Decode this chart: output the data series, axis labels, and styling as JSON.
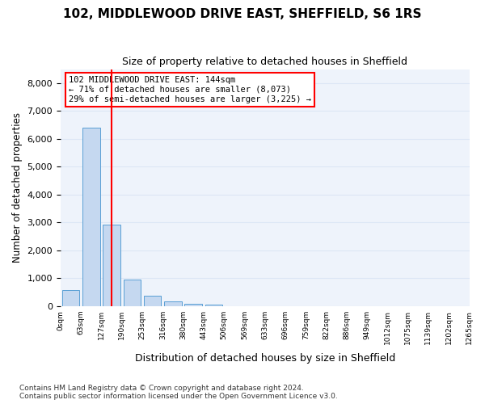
{
  "title": "102, MIDDLEWOOD DRIVE EAST, SHEFFIELD, S6 1RS",
  "subtitle": "Size of property relative to detached houses in Sheffield",
  "xlabel": "Distribution of detached houses by size in Sheffield",
  "ylabel": "Number of detached properties",
  "bar_values": [
    580,
    6400,
    2920,
    960,
    360,
    160,
    90,
    50,
    0,
    0,
    0,
    0,
    0,
    0,
    0,
    0,
    0,
    0,
    0,
    0
  ],
  "bar_color": "#c5d8f0",
  "bar_edge_color": "#5a9fd4",
  "tick_labels": [
    "0sqm",
    "63sqm",
    "127sqm",
    "190sqm",
    "253sqm",
    "316sqm",
    "380sqm",
    "443sqm",
    "506sqm",
    "569sqm",
    "633sqm",
    "696sqm",
    "759sqm",
    "822sqm",
    "886sqm",
    "949sqm",
    "1012sqm",
    "1075sqm",
    "1139sqm",
    "1202sqm"
  ],
  "extra_tick": "1265sqm",
  "ylim": [
    0,
    8500
  ],
  "yticks": [
    0,
    1000,
    2000,
    3000,
    4000,
    5000,
    6000,
    7000,
    8000
  ],
  "annotation_title": "102 MIDDLEWOOD DRIVE EAST: 144sqm",
  "annotation_line1": "← 71% of detached houses are smaller (8,073)",
  "annotation_line2": "29% of semi-detached houses are larger (3,225) →",
  "vline_x": 2.0,
  "footer_line1": "Contains HM Land Registry data © Crown copyright and database right 2024.",
  "footer_line2": "Contains public sector information licensed under the Open Government Licence v3.0.",
  "grid_color": "#dce6f5",
  "bg_color": "#eef3fb"
}
